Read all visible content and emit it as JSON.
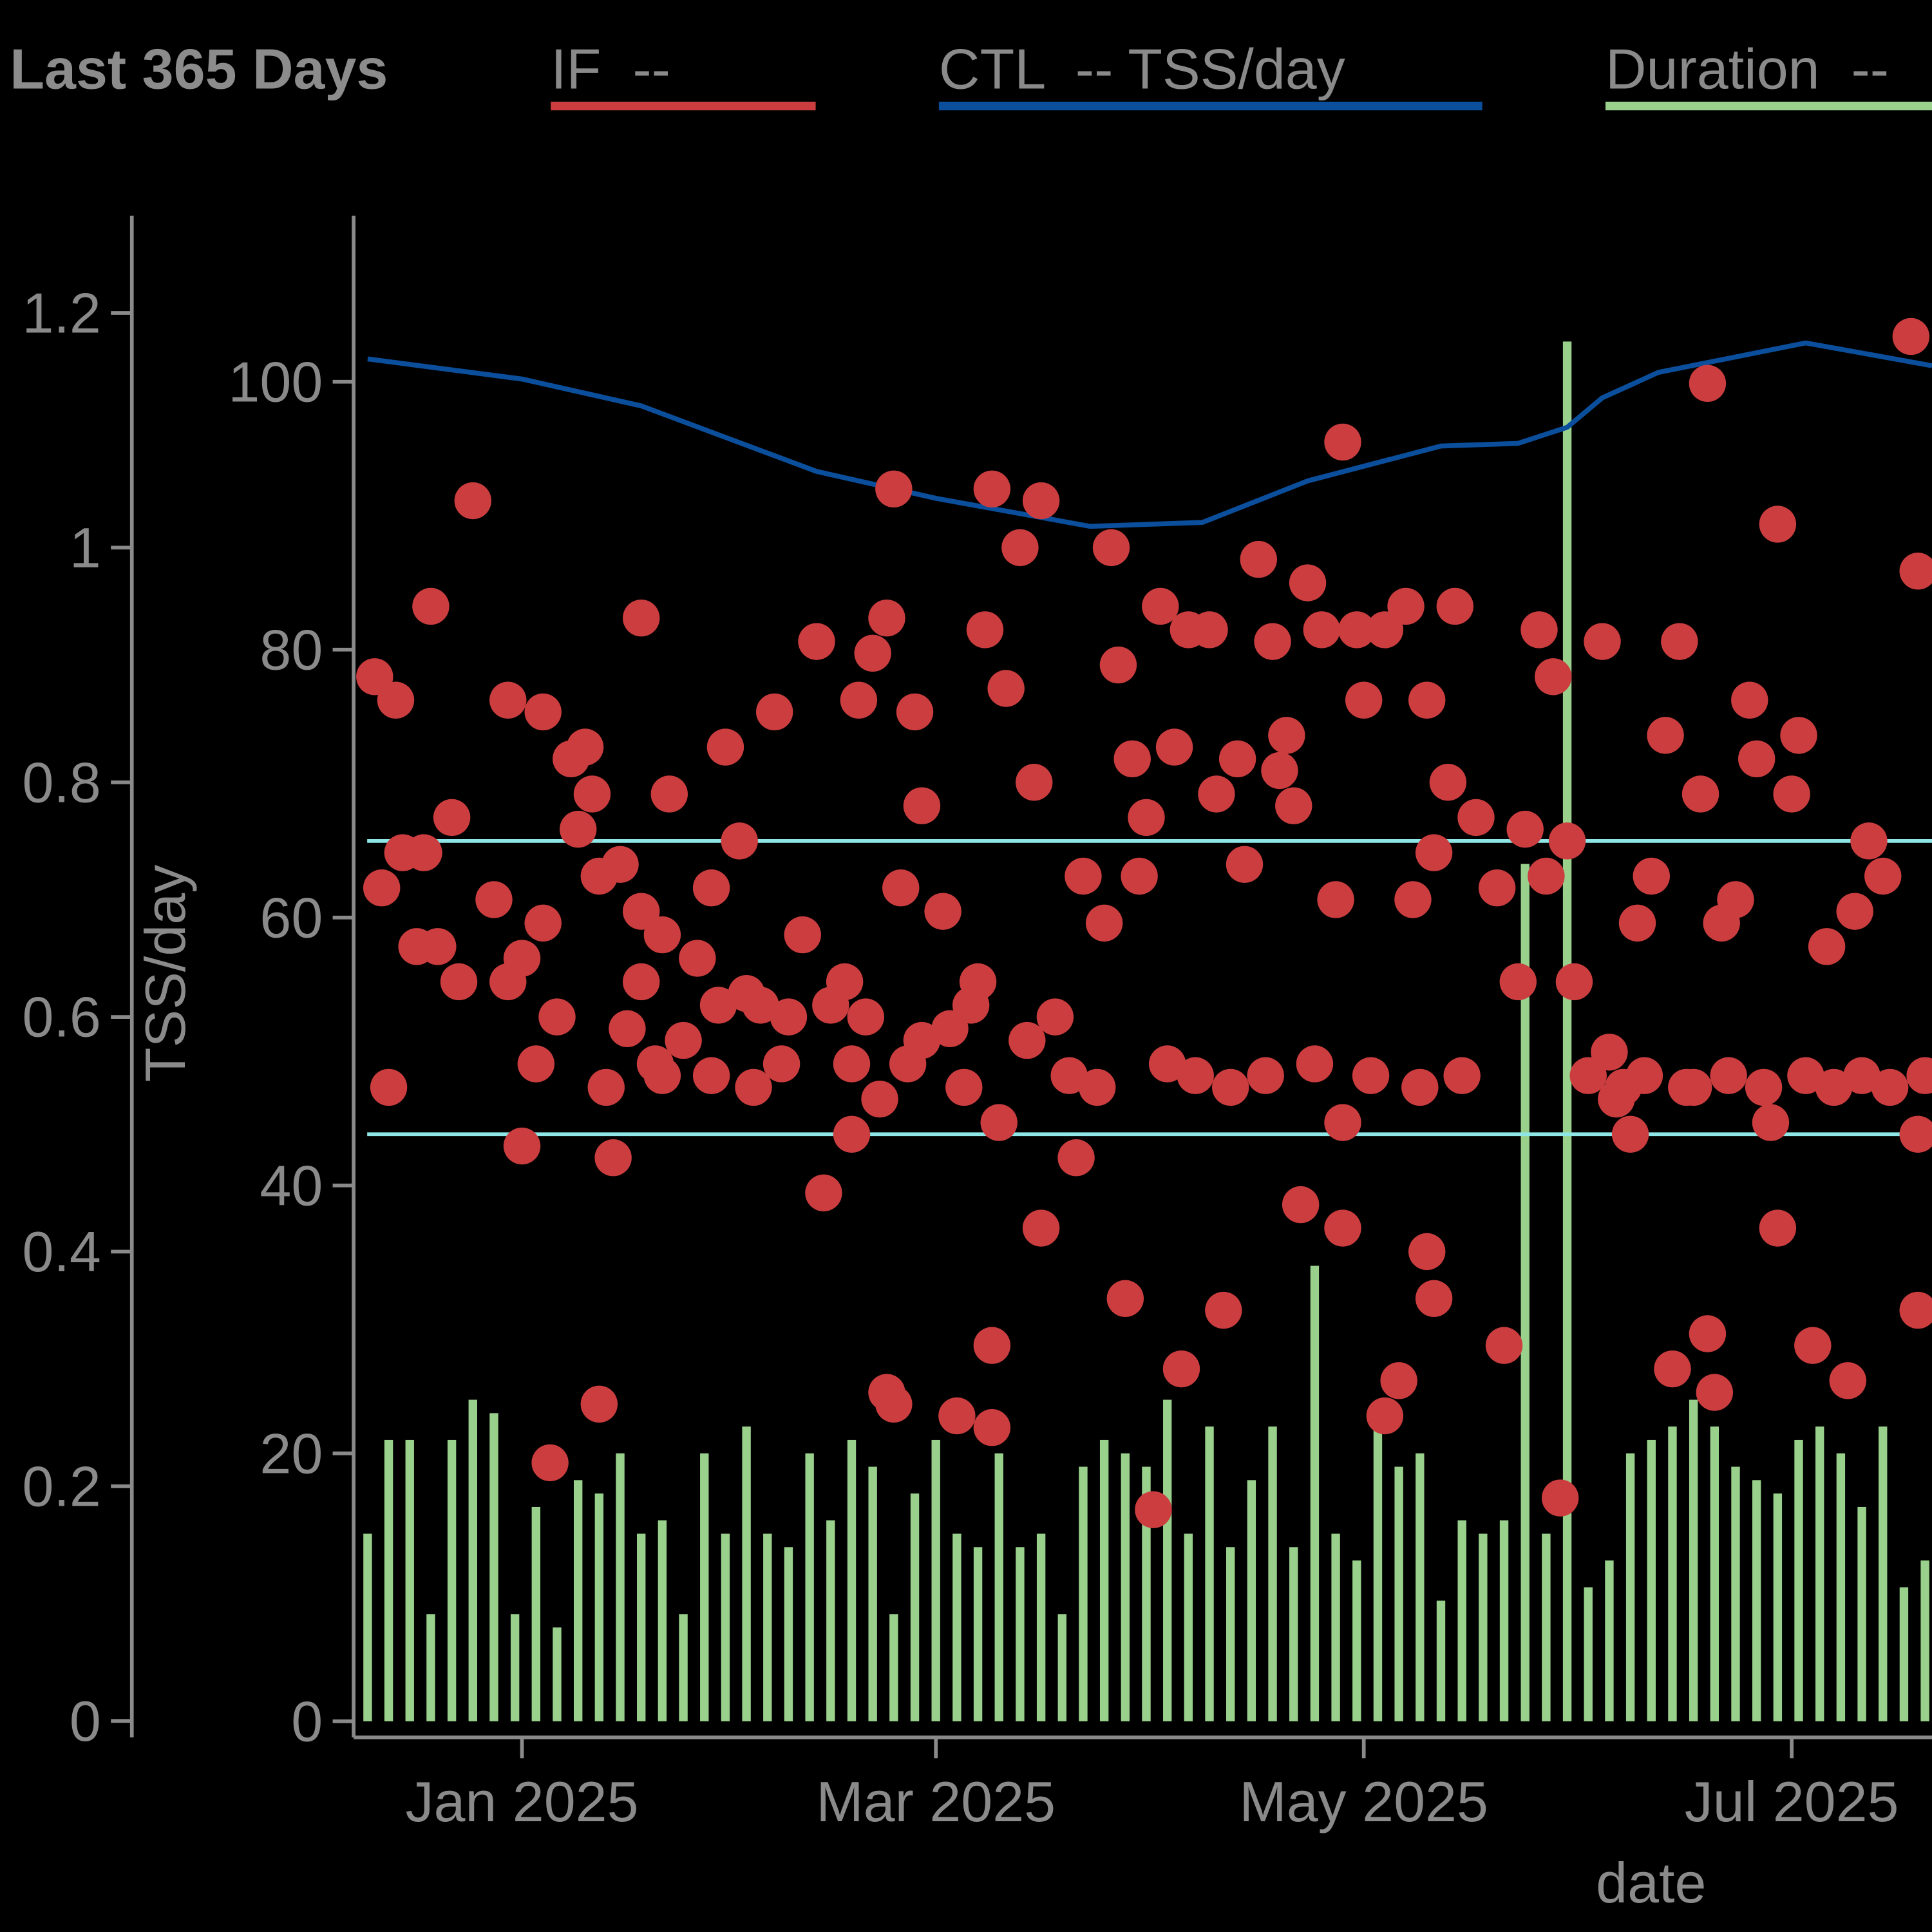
{
  "chart_data": {
    "type": "combo",
    "title": "Last 365 Days",
    "xlabel": "date",
    "y2label": "TSS/day",
    "xlim": [
      "2024-12-08",
      "2025-07-21"
    ],
    "xticks": [
      {
        "value": "2025-01-01",
        "label": "Jan 2025"
      },
      {
        "value": "2025-03-01",
        "label": "Mar 2025"
      },
      {
        "value": "2025-05-01",
        "label": "May 2025"
      },
      {
        "value": "2025-07-01",
        "label": "Jul 2025"
      }
    ],
    "ylim": [
      -0.014,
      1.283
    ],
    "yticks": [
      0,
      0.2,
      0.4,
      0.6,
      0.8,
      1,
      1.2
    ],
    "y2lim": [
      -1.2,
      112.4
    ],
    "y2ticks": [
      0,
      20,
      40,
      60,
      80,
      100
    ],
    "reference_lines": [
      {
        "axis": "y",
        "value": 0.75,
        "color": "#8ee6e6"
      },
      {
        "axis": "y",
        "value": 0.5,
        "color": "#8ee6e6"
      }
    ],
    "series": [
      {
        "name": "IF  --",
        "type": "scatter",
        "axis": "y",
        "color": "#cc3d3f",
        "x": [
          "2024-12-11",
          "2024-12-14",
          "2024-12-12",
          "2024-12-13",
          "2024-12-15",
          "2024-12-18",
          "2024-12-17",
          "2024-12-19",
          "2024-12-20",
          "2024-12-22",
          "2024-12-23",
          "2024-12-25",
          "2024-12-28",
          "2024-12-30",
          "2024-12-30",
          "2025-01-01",
          "2025-01-01",
          "2025-01-04",
          "2025-01-04",
          "2025-01-05",
          "2025-01-03",
          "2025-01-08",
          "2025-01-10",
          "2025-01-09",
          "2025-01-11",
          "2025-01-12",
          "2025-01-12",
          "2025-01-14",
          "2025-01-13",
          "2025-01-15",
          "2025-01-18",
          "2025-01-18",
          "2025-01-18",
          "2025-01-20",
          "2025-01-21",
          "2025-01-22",
          "2025-01-21",
          "2025-01-26",
          "2025-01-28",
          "2025-01-28",
          "2025-01-29",
          "2025-01-30",
          "2025-02-01",
          "2025-02-03",
          "2025-02-04",
          "2025-02-06",
          "2025-02-07",
          "2025-02-10",
          "2025-02-12",
          "2025-02-13",
          "2025-02-16",
          "2025-02-17",
          "2025-02-17",
          "2025-02-18",
          "2025-02-20",
          "2025-02-21",
          "2025-02-22",
          "2025-02-22",
          "2025-02-23",
          "2025-02-23",
          "2025-02-24",
          "2025-02-26",
          "2025-02-25",
          "2025-02-27",
          "2025-03-02",
          "2025-03-04",
          "2025-03-05",
          "2025-03-07",
          "2025-03-09",
          "2025-03-08",
          "2025-03-09",
          "2025-03-09",
          "2025-03-10",
          "2025-03-11",
          "2025-03-13",
          "2025-03-15",
          "2025-03-16",
          "2025-03-16",
          "2025-03-14",
          "2025-03-18",
          "2025-03-21",
          "2025-03-22",
          "2025-03-25",
          "2025-03-26",
          "2025-03-27",
          "2025-03-28",
          "2025-03-29",
          "2025-03-31",
          "2025-03-30",
          "2025-04-01",
          "2025-04-02",
          "2025-04-04",
          "2025-04-05",
          "2025-04-06",
          "2025-04-09",
          "2025-04-10",
          "2025-04-11",
          "2025-04-13",
          "2025-04-14",
          "2025-04-16",
          "2025-04-18",
          "2025-04-19",
          "2025-04-20",
          "2025-04-21",
          "2025-04-22",
          "2025-04-23",
          "2025-04-25",
          "2025-04-27",
          "2025-04-28",
          "2025-04-28",
          "2025-04-28",
          "2025-04-30",
          "2025-05-01",
          "2025-05-04",
          "2025-05-04",
          "2025-05-06",
          "2025-05-07",
          "2025-05-08",
          "2025-05-10",
          "2025-05-10",
          "2025-05-11",
          "2025-05-11",
          "2025-05-13",
          "2025-05-14",
          "2025-05-17",
          "2025-05-20",
          "2025-05-21",
          "2025-05-23",
          "2025-05-24",
          "2025-05-26",
          "2025-05-27",
          "2025-05-28",
          "2025-05-29",
          "2025-05-30",
          "2025-05-31",
          "2025-06-04",
          "2025-06-05",
          "2025-06-07",
          "2025-06-08",
          "2025-06-09",
          "2025-06-11",
          "2025-06-13",
          "2025-06-14",
          "2025-06-15",
          "2025-06-16",
          "2025-06-18",
          "2025-06-19",
          "2025-06-19",
          "2025-06-20",
          "2025-06-21",
          "2025-06-23",
          "2025-06-25",
          "2025-06-26",
          "2025-06-28",
          "2025-06-29",
          "2025-06-29",
          "2025-07-01",
          "2025-07-02",
          "2025-07-04",
          "2025-07-06",
          "2025-07-09",
          "2025-07-10",
          "2025-07-12",
          "2025-07-14",
          "2025-07-18",
          "2025-07-19",
          "2025-07-19",
          "2025-07-19",
          "2025-03-20",
          "2025-03-24",
          "2025-04-03",
          "2025-04-07",
          "2025-04-12",
          "2025-04-17",
          "2025-04-24",
          "2025-05-02",
          "2025-05-09",
          "2025-05-15",
          "2025-06-02",
          "2025-06-06",
          "2025-06-10",
          "2025-06-17",
          "2025-06-22",
          "2025-06-27",
          "2025-07-03",
          "2025-07-07",
          "2025-07-11",
          "2025-07-15",
          "2025-07-20",
          "2025-01-06",
          "2025-01-16",
          "2025-01-24",
          "2025-02-02",
          "2025-02-08",
          "2025-02-14",
          "2025-02-19",
          "2025-02-27",
          "2025-03-03",
          "2025-03-06"
        ],
        "values": [
          0.89,
          0.87,
          0.71,
          0.54,
          0.74,
          0.74,
          0.66,
          0.95,
          0.66,
          0.77,
          0.63,
          1.04,
          0.7,
          0.87,
          0.63,
          0.65,
          0.49,
          0.86,
          0.68,
          0.22,
          0.56,
          0.82,
          0.83,
          0.76,
          0.79,
          0.72,
          0.27,
          0.48,
          0.54,
          0.73,
          0.94,
          0.63,
          0.69,
          0.56,
          0.55,
          0.79,
          0.67,
          0.65,
          0.71,
          0.55,
          0.61,
          0.83,
          0.75,
          0.54,
          0.61,
          0.86,
          0.56,
          0.67,
          0.92,
          0.45,
          0.63,
          0.5,
          0.56,
          0.87,
          0.91,
          0.53,
          0.94,
          0.28,
          1.05,
          0.27,
          0.71,
          0.86,
          0.56,
          0.78,
          0.69,
          0.26,
          0.54,
          0.63,
          0.32,
          0.93,
          1.05,
          0.25,
          0.51,
          0.88,
          1.0,
          0.8,
          1.04,
          0.42,
          0.58,
          0.6,
          0.48,
          0.72,
          0.68,
          1.0,
          0.9,
          0.36,
          0.82,
          0.77,
          0.72,
          0.18,
          0.95,
          0.83,
          0.3,
          0.93,
          0.93,
          0.79,
          0.35,
          0.82,
          0.73,
          0.99,
          0.92,
          0.81,
          0.84,
          0.78,
          0.44,
          0.97,
          0.93,
          0.7,
          1.09,
          0.42,
          0.51,
          0.93,
          0.87,
          0.93,
          0.26,
          0.29,
          0.95,
          0.7,
          0.87,
          0.4,
          0.36,
          0.74,
          0.8,
          0.95,
          0.77,
          0.71,
          0.32,
          0.63,
          0.76,
          0.93,
          0.72,
          0.89,
          0.19,
          0.75,
          0.63,
          0.92,
          0.57,
          0.54,
          0.5,
          0.68,
          0.72,
          0.84,
          0.3,
          0.92,
          0.54,
          0.79,
          1.14,
          0.33,
          0.28,
          0.68,
          0.7,
          0.87,
          0.82,
          0.51,
          0.42,
          1.02,
          0.79,
          0.84,
          0.32,
          0.66,
          0.29,
          0.69,
          0.75,
          0.72,
          1.18,
          0.98,
          0.5,
          0.35,
          0.55,
          0.54,
          0.56,
          0.55,
          0.54,
          0.55,
          0.56,
          0.55,
          0.54,
          0.55,
          0.55,
          0.53,
          0.55,
          0.54,
          0.55,
          0.54,
          0.55,
          0.54,
          0.55,
          0.54,
          0.55,
          0.6,
          0.59,
          0.58,
          0.62,
          0.6,
          0.61,
          0.6,
          0.58,
          0.59,
          0.61
        ]
      },
      {
        "name": "CTL  -- TSS/day",
        "type": "line",
        "axis": "y2",
        "color": "#0b4f9c",
        "x": [
          "2024-12-10",
          "2025-01-01",
          "2025-01-18",
          "2025-02-12",
          "2025-03-01",
          "2025-03-23",
          "2025-04-08",
          "2025-04-23",
          "2025-05-12",
          "2025-05-23",
          "2025-05-30",
          "2025-06-04",
          "2025-06-12",
          "2025-07-03",
          "2025-07-21"
        ],
        "values": [
          101.7,
          100.2,
          98.2,
          93.3,
          91.3,
          89.2,
          89.5,
          92.6,
          95.2,
          95.4,
          96.6,
          98.8,
          100.7,
          102.9,
          101.2
        ]
      },
      {
        "name": "Duration  --",
        "type": "bar",
        "axis": "y2",
        "color": "#99d18c",
        "x": [
          "2024-12-10",
          "2024-12-13",
          "2024-12-16",
          "2024-12-19",
          "2024-12-22",
          "2024-12-25",
          "2024-12-28",
          "2024-12-31",
          "2025-01-03",
          "2025-01-06",
          "2025-01-09",
          "2025-01-12",
          "2025-01-15",
          "2025-01-18",
          "2025-01-21",
          "2025-01-24",
          "2025-01-27",
          "2025-01-30",
          "2025-02-02",
          "2025-02-05",
          "2025-02-08",
          "2025-02-11",
          "2025-02-14",
          "2025-02-17",
          "2025-02-20",
          "2025-02-23",
          "2025-02-26",
          "2025-03-01",
          "2025-03-04",
          "2025-03-07",
          "2025-03-10",
          "2025-03-13",
          "2025-03-16",
          "2025-03-19",
          "2025-03-22",
          "2025-03-25",
          "2025-03-28",
          "2025-03-31",
          "2025-04-03",
          "2025-04-06",
          "2025-04-09",
          "2025-04-12",
          "2025-04-15",
          "2025-04-18",
          "2025-04-21",
          "2025-04-24",
          "2025-04-27",
          "2025-04-30",
          "2025-05-03",
          "2025-05-06",
          "2025-05-09",
          "2025-05-12",
          "2025-05-15",
          "2025-05-18",
          "2025-05-21",
          "2025-05-24",
          "2025-05-27",
          "2025-05-30",
          "2025-06-02",
          "2025-06-05",
          "2025-06-08",
          "2025-06-11",
          "2025-06-14",
          "2025-06-17",
          "2025-06-20",
          "2025-06-23",
          "2025-06-26",
          "2025-06-29",
          "2025-07-02",
          "2025-07-05",
          "2025-07-08",
          "2025-07-11",
          "2025-07-14",
          "2025-07-17",
          "2025-07-20"
        ],
        "values": [
          14,
          21,
          21,
          8,
          21,
          24,
          23,
          8,
          16,
          7,
          18,
          17,
          20,
          14,
          15,
          8,
          20,
          14,
          22,
          14,
          13,
          20,
          15,
          21,
          19,
          8,
          17,
          21,
          14,
          13,
          20,
          13,
          14,
          8,
          19,
          21,
          20,
          19,
          24,
          14,
          22,
          13,
          18,
          22,
          13,
          34,
          14,
          12,
          22,
          19,
          20,
          9,
          15,
          14,
          15,
          64,
          14,
          103,
          10,
          12,
          20,
          21,
          22,
          24,
          22,
          19,
          18,
          17,
          21,
          22,
          20,
          16,
          22,
          10,
          12
        ]
      }
    ]
  }
}
